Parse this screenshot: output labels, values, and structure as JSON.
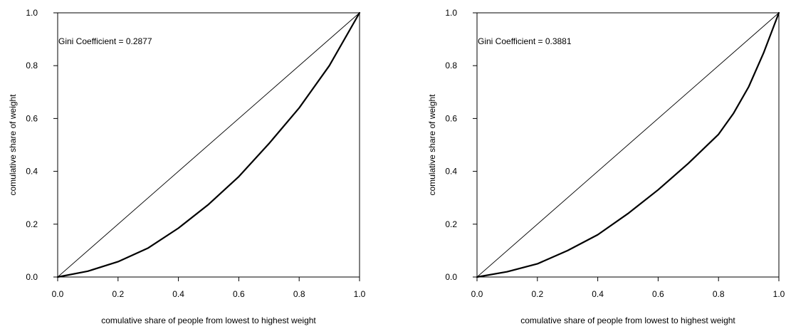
{
  "chart_data": [
    {
      "type": "line",
      "xlabel": "comulative share of people from lowest to highest weight",
      "ylabel": "comulative share of weight",
      "xlim": [
        0,
        1
      ],
      "ylim": [
        0,
        1
      ],
      "x_ticks": [
        "0.0",
        "0.2",
        "0.4",
        "0.6",
        "0.8",
        "1.0"
      ],
      "y_ticks": [
        "0.0",
        "0.2",
        "0.4",
        "0.6",
        "0.8",
        "1.0"
      ],
      "grid": false,
      "annotation": "Gini Coefficient = 0.2877",
      "series": [
        {
          "x": [
            0,
            0.1,
            0.2,
            0.3,
            0.4,
            0.5,
            0.6,
            0.7,
            0.8,
            0.9,
            1.0
          ],
          "y": [
            0,
            0.022,
            0.058,
            0.11,
            0.185,
            0.275,
            0.38,
            0.505,
            0.64,
            0.8,
            1.0
          ]
        },
        {
          "x": [
            0,
            1
          ],
          "y": [
            0,
            1
          ]
        }
      ]
    },
    {
      "type": "line",
      "xlabel": "comulative share of people from lowest to highest weight",
      "ylabel": "comulative share of weight",
      "xlim": [
        0,
        1
      ],
      "ylim": [
        0,
        1
      ],
      "x_ticks": [
        "0.0",
        "0.2",
        "0.4",
        "0.6",
        "0.8",
        "1.0"
      ],
      "y_ticks": [
        "0.0",
        "0.2",
        "0.4",
        "0.6",
        "0.8",
        "1.0"
      ],
      "grid": false,
      "annotation": "Gini Coefficient = 0.3881",
      "series": [
        {
          "x": [
            0,
            0.1,
            0.2,
            0.3,
            0.4,
            0.5,
            0.6,
            0.7,
            0.8,
            0.85,
            0.9,
            0.95,
            1.0
          ],
          "y": [
            0,
            0.02,
            0.05,
            0.1,
            0.16,
            0.24,
            0.33,
            0.43,
            0.54,
            0.62,
            0.72,
            0.85,
            1.0
          ]
        },
        {
          "x": [
            0,
            1
          ],
          "y": [
            0,
            1
          ]
        }
      ]
    }
  ]
}
